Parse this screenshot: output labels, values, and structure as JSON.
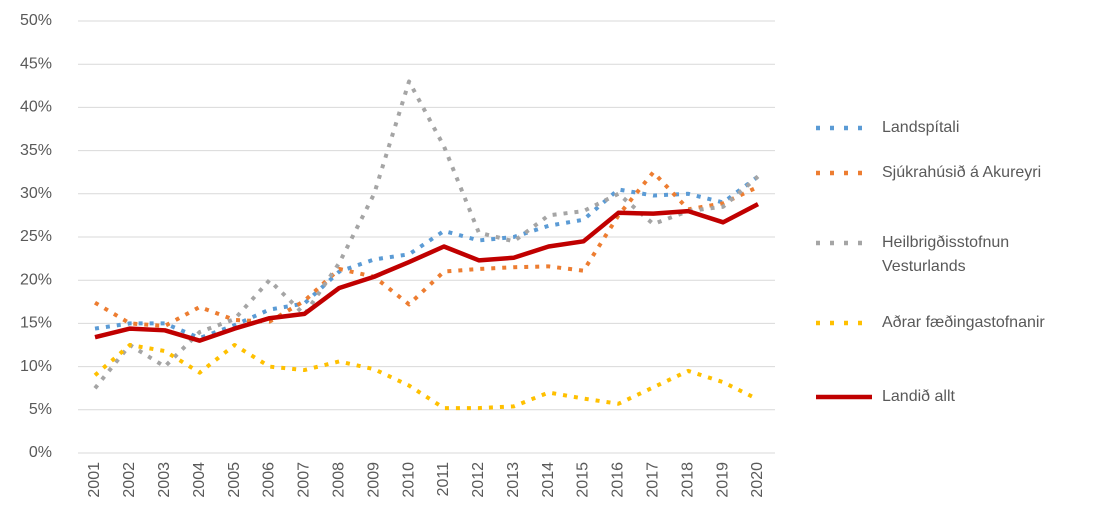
{
  "chart_data": {
    "type": "line",
    "categories": [
      "2001",
      "2002",
      "2003",
      "2004",
      "2005",
      "2006",
      "2007",
      "2008",
      "2009",
      "2010",
      "2011",
      "2012",
      "2013",
      "2014",
      "2015",
      "2016",
      "2017",
      "2018",
      "2019",
      "2020"
    ],
    "ylim": [
      0,
      50
    ],
    "yticks": [
      {
        "value": 0,
        "label": "0%"
      },
      {
        "value": 5,
        "label": "5%"
      },
      {
        "value": 10,
        "label": "10%"
      },
      {
        "value": 15,
        "label": "15%"
      },
      {
        "value": 20,
        "label": "20%"
      },
      {
        "value": 25,
        "label": "25%"
      },
      {
        "value": 30,
        "label": "30%"
      },
      {
        "value": 35,
        "label": "35%"
      },
      {
        "value": 40,
        "label": "40%"
      },
      {
        "value": 45,
        "label": "45%"
      },
      {
        "value": 50,
        "label": "50%"
      }
    ],
    "grid": true,
    "series": [
      {
        "name": "Landspítali",
        "color": "#5b9bd5",
        "dotted": true,
        "values": [
          14.4,
          15.0,
          15.0,
          13.3,
          14.8,
          16.6,
          17.3,
          21.0,
          22.4,
          23.0,
          25.7,
          24.6,
          25.0,
          26.3,
          27.0,
          30.5,
          29.8,
          30.0,
          29.0,
          32.0
        ]
      },
      {
        "name": "Sjúkrahúsið á Akureyri",
        "color": "#ed7d31",
        "dotted": true,
        "values": [
          17.4,
          15.0,
          14.7,
          16.9,
          15.4,
          15.2,
          17.6,
          21.3,
          20.4,
          17.2,
          21.0,
          21.3,
          21.5,
          21.6,
          21.1,
          27.5,
          32.5,
          28.2,
          28.9,
          30.8
        ]
      },
      {
        "name": "Heilbrigðisstofnun Vesturlands",
        "color": "#a5a5a5",
        "dotted": true,
        "values": [
          7.5,
          12.5,
          10.0,
          14.0,
          15.5,
          20.0,
          16.0,
          22.0,
          30.0,
          43.0,
          35.5,
          25.5,
          24.5,
          27.5,
          28.0,
          30.0,
          26.5,
          28.0,
          28.5,
          32.0
        ]
      },
      {
        "name": "Aðrar fæðingastofnanir",
        "color": "#ffc000",
        "dotted": true,
        "values": [
          9.0,
          12.5,
          11.8,
          9.3,
          12.5,
          10.0,
          9.6,
          10.6,
          9.7,
          7.8,
          5.2,
          5.2,
          5.4,
          7.0,
          6.3,
          5.7,
          7.6,
          9.5,
          8.2,
          6.2
        ]
      },
      {
        "name": "Landið allt",
        "color": "#c00000",
        "dotted": false,
        "values": [
          13.4,
          14.4,
          14.2,
          13.0,
          14.4,
          15.6,
          16.1,
          19.1,
          20.4,
          22.1,
          23.9,
          22.3,
          22.6,
          23.9,
          24.5,
          27.8,
          27.7,
          28.0,
          26.7,
          28.8
        ]
      }
    ]
  }
}
